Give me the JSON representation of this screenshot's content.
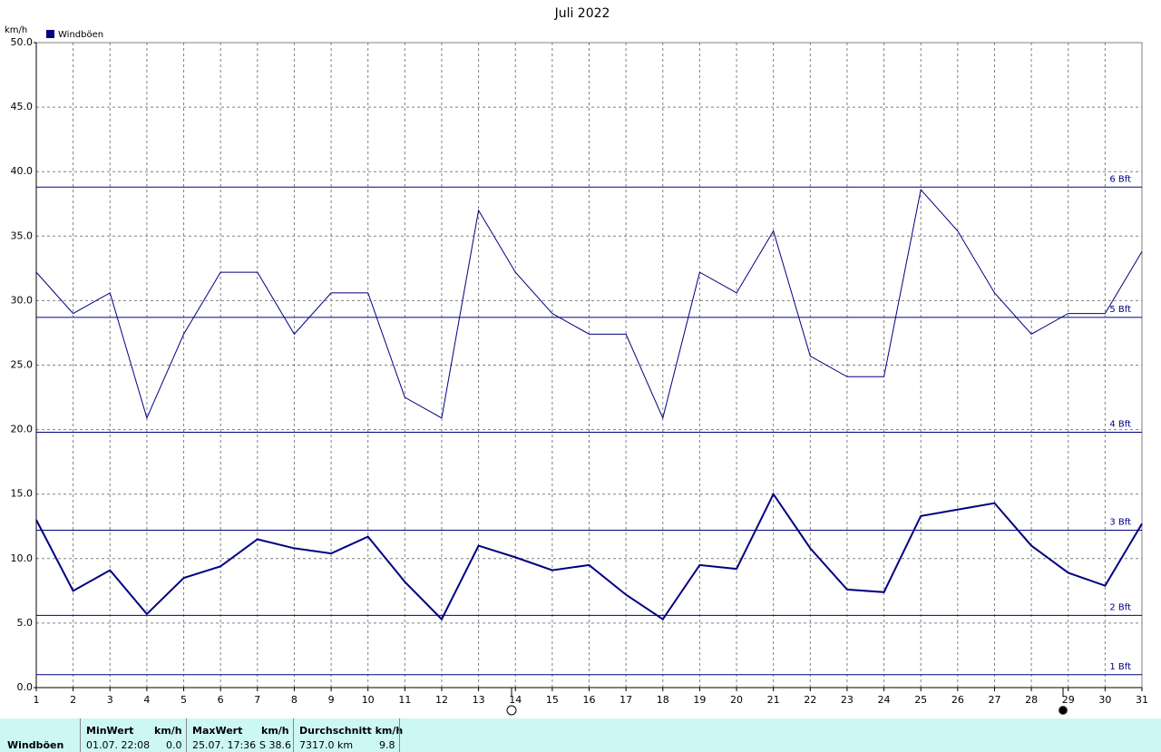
{
  "chart_data": {
    "type": "line",
    "title": "Juli 2022",
    "y_unit": "km/h",
    "categories": [
      "1",
      "2",
      "3",
      "4",
      "5",
      "6",
      "7",
      "8",
      "9",
      "10",
      "11",
      "12",
      "13",
      "14",
      "15",
      "16",
      "17",
      "18",
      "19",
      "20",
      "21",
      "22",
      "23",
      "24",
      "25",
      "26",
      "27",
      "28",
      "29",
      "30",
      "31"
    ],
    "series": [
      {
        "name": "Windböen",
        "color": "#000080",
        "width": 1,
        "values": [
          32.2,
          29.0,
          30.6,
          20.9,
          27.4,
          32.2,
          32.2,
          27.4,
          30.6,
          30.6,
          22.5,
          20.9,
          37.0,
          32.2,
          29.0,
          27.4,
          27.4,
          20.9,
          32.2,
          30.6,
          35.4,
          25.7,
          24.1,
          24.1,
          38.6,
          35.4,
          30.6,
          27.4,
          29.0,
          29.0,
          33.8
        ]
      },
      {
        "color": "#000080",
        "width": 2,
        "values": [
          13.0,
          7.5,
          9.1,
          5.7,
          8.5,
          9.4,
          11.5,
          10.8,
          10.4,
          11.7,
          8.2,
          5.3,
          11.0,
          10.1,
          9.1,
          9.5,
          7.2,
          5.3,
          9.5,
          9.2,
          15.0,
          10.8,
          7.6,
          7.4,
          13.3,
          13.8,
          14.3,
          11.0,
          8.9,
          7.9,
          12.7
        ]
      }
    ],
    "reference_lines": [
      {
        "label": "1 Bft",
        "value": 1.0
      },
      {
        "label": "2 Bft",
        "value": 5.6
      },
      {
        "label": "3 Bft",
        "value": 12.2
      },
      {
        "label": "4 Bft",
        "value": 19.8
      },
      {
        "label": "5 Bft",
        "value": 28.7
      },
      {
        "label": "6 Bft",
        "value": 38.8
      }
    ],
    "ylim": [
      0,
      50
    ],
    "yticks": [
      {
        "value": 0,
        "label": "0.0"
      },
      {
        "value": 5,
        "label": "5.0"
      },
      {
        "value": 10,
        "label": "10.0"
      },
      {
        "value": 15,
        "label": "15.0"
      },
      {
        "value": 20,
        "label": "20.0"
      },
      {
        "value": 25,
        "label": "25.0"
      },
      {
        "value": 30,
        "label": "30.0"
      },
      {
        "value": 35,
        "label": "35.0"
      },
      {
        "value": 40,
        "label": "40.0"
      },
      {
        "value": 45,
        "label": "45.0"
      },
      {
        "value": 50,
        "label": "50.0"
      }
    ],
    "grid": true
  },
  "table": {
    "row_label": "Windböen",
    "min": {
      "header": "MinWert",
      "unit": "km/h",
      "time": "01.07.  22:08",
      "value": "0.0"
    },
    "max": {
      "header": "MaxWert",
      "unit": "km/h",
      "time": "25.07.  17:36",
      "value": "S 38.6"
    },
    "avg": {
      "header": "Durchschnitt km/h",
      "distance": "7317.0 km",
      "value": "9.8"
    }
  }
}
